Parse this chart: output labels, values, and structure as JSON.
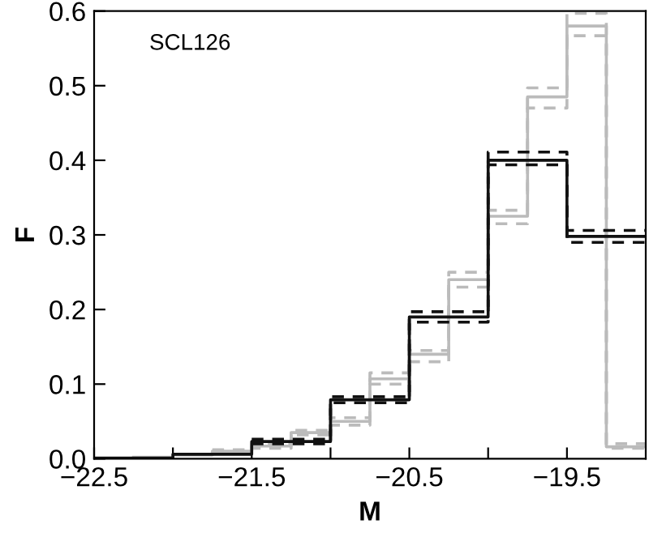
{
  "chart_data": {
    "type": "step",
    "xlabel": "M",
    "ylabel": "F",
    "annotations": [
      "SCL126"
    ],
    "series": [
      {
        "color": "#bbbbbb",
        "line_style": "solid",
        "x": [
          -22.25,
          -22.0,
          -21.75,
          -21.5,
          -21.25,
          -21.0,
          -20.75,
          -20.5,
          -20.25,
          -20.0,
          -19.75,
          -19.5,
          -19.25,
          -19.0
        ],
        "values": [
          0.002,
          0.005,
          0.01,
          0.017,
          0.035,
          0.05,
          0.107,
          0.14,
          0.24,
          0.325,
          0.485,
          0.58,
          0.016,
          0.016
        ]
      },
      {
        "color": "#bbbbbb",
        "line_style": "dashed",
        "x": [
          -21.75,
          -21.5,
          -21.25,
          -21.0,
          -20.75,
          -20.5,
          -20.25,
          -20.0,
          -19.75,
          -19.5,
          -19.25,
          -19.0
        ],
        "values": [
          0.008,
          0.014,
          0.032,
          0.045,
          0.1,
          0.13,
          0.23,
          0.315,
          0.47,
          0.567,
          0.014,
          0.014
        ]
      },
      {
        "color": "#bbbbbb",
        "line_style": "dashed",
        "x": [
          -21.75,
          -21.5,
          -21.25,
          -21.0,
          -20.75,
          -20.5,
          -20.25,
          -20.0,
          -19.75,
          -19.5,
          -19.25,
          -19.0
        ],
        "values": [
          0.012,
          0.02,
          0.038,
          0.055,
          0.115,
          0.145,
          0.25,
          0.333,
          0.497,
          0.597,
          0.02,
          0.02
        ]
      },
      {
        "color": "#111111",
        "line_style": "solid",
        "x": [
          -22.5,
          -22.0,
          -21.5,
          -21.0,
          -20.5,
          -20.0,
          -19.5,
          -19.0
        ],
        "values": [
          0.001,
          0.006,
          0.023,
          0.079,
          0.19,
          0.4,
          0.298,
          0.298
        ]
      },
      {
        "color": "#111111",
        "line_style": "dashed",
        "x": [
          -21.5,
          -21.0,
          -20.5,
          -20.0,
          -19.5,
          -19.0
        ],
        "values": [
          0.02,
          0.075,
          0.183,
          0.394,
          0.29,
          0.29
        ]
      },
      {
        "color": "#111111",
        "line_style": "dashed",
        "x": [
          -21.5,
          -21.0,
          -20.5,
          -20.0,
          -19.5,
          -19.0
        ],
        "values": [
          0.026,
          0.083,
          0.197,
          0.411,
          0.306,
          0.306
        ]
      }
    ],
    "xlim": [
      -22.5,
      -19.0
    ],
    "xticks": [
      {
        "value": -22.5,
        "label": "−22.5"
      },
      {
        "value": -22.0,
        "label": null
      },
      {
        "value": -21.5,
        "label": "−21.5"
      },
      {
        "value": -21.0,
        "label": null
      },
      {
        "value": -20.5,
        "label": "−20.5"
      },
      {
        "value": -20.0,
        "label": null
      },
      {
        "value": -19.5,
        "label": "−19.5"
      }
    ],
    "ylim": [
      0,
      0.6
    ],
    "yticks": [
      {
        "value": 0,
        "label": "0.0"
      },
      0.1,
      0.2,
      0.3,
      0.4,
      0.5,
      0.6
    ],
    "grid": false
  }
}
